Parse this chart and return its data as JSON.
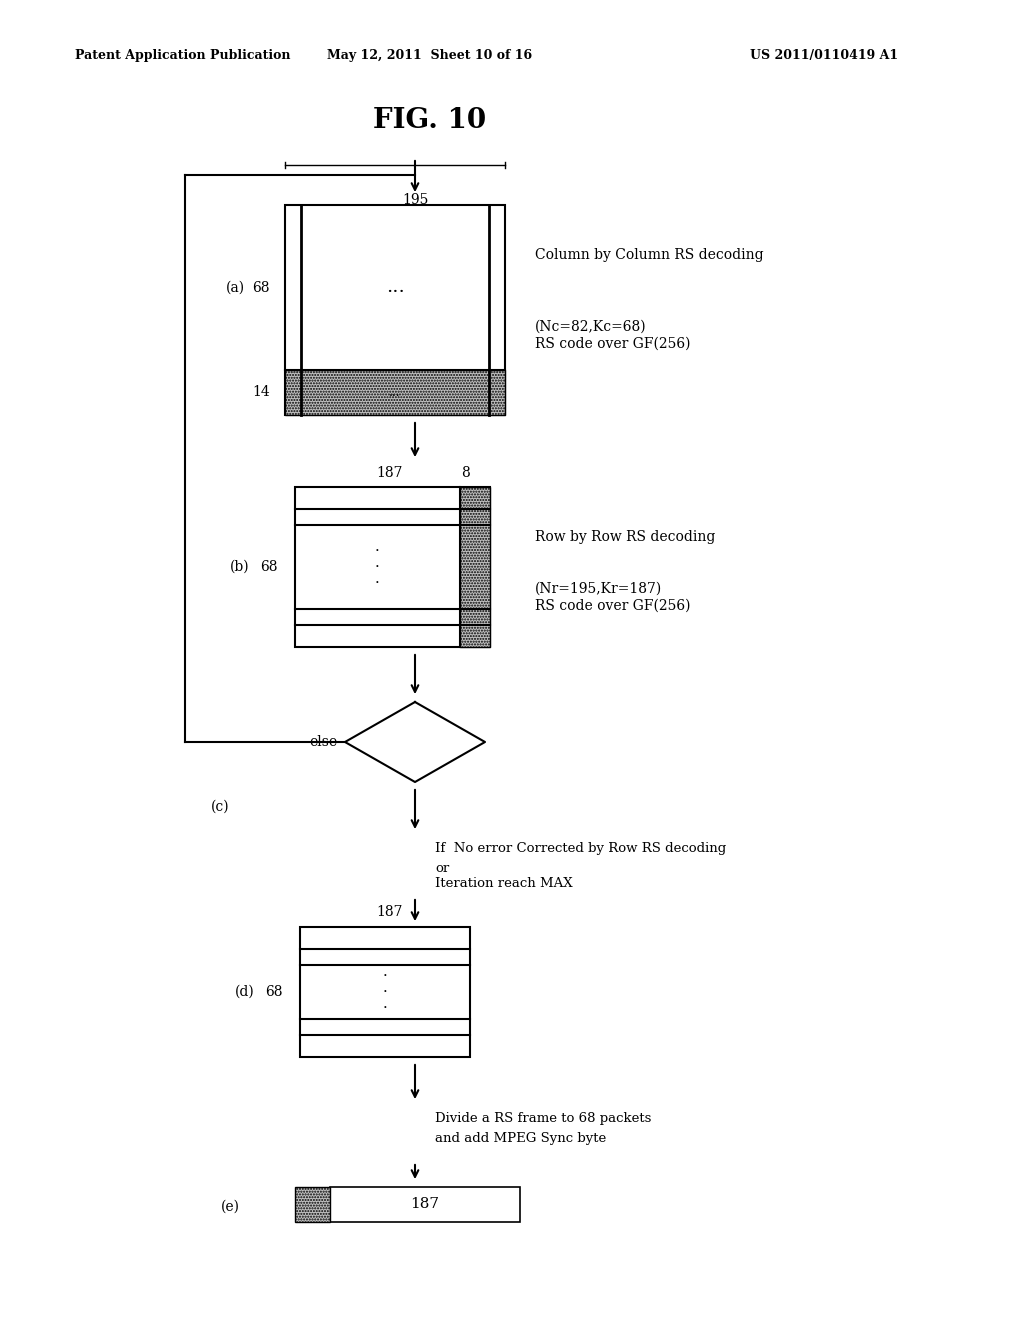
{
  "title": "FIG. 10",
  "header_left": "Patent Application Publication",
  "header_mid": "May 12, 2011  Sheet 10 of 16",
  "header_right": "US 2011/0110419 A1",
  "background_color": "#ffffff",
  "text_color": "#000000",
  "fig_width": 10.24,
  "fig_height": 13.2,
  "dpi": 100
}
